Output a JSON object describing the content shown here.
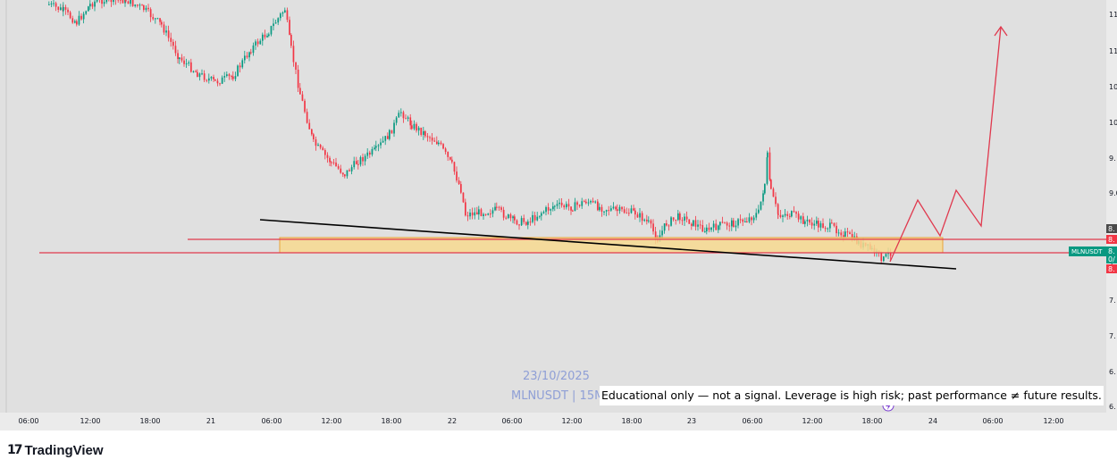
{
  "chart_data": {
    "type": "candlestick",
    "symbol_label": "MLNUSDT",
    "watermark_date": "23/10/2025",
    "watermark_symbol": "MLNUSDT | 15M",
    "x_ticks": [
      "06:00",
      "12:00",
      "18:00",
      "21",
      "06:00",
      "12:00",
      "18:00",
      "22",
      "06:00",
      "12:00",
      "18:00",
      "23",
      "06:00",
      "12:00",
      "18:00",
      "24",
      "06:00",
      "12:00"
    ],
    "y_ticks": [
      "11",
      "11",
      "10",
      "10",
      "9.",
      "9.0",
      "8.",
      "8.",
      "8.",
      "7.",
      "7.",
      "7.",
      "6.",
      "6."
    ],
    "price_tags": [
      {
        "text": "8.",
        "color": "#4a4a4a"
      },
      {
        "text": "8.",
        "color": "#f23645"
      },
      {
        "text": "8.",
        "color": "#089981"
      },
      {
        "text": "0/",
        "color": "#089981"
      },
      {
        "text": "8.",
        "color": "#f23645"
      }
    ],
    "colors": {
      "up": "#089981",
      "down": "#f23645",
      "zone_fill": "#f7d98f",
      "zone_stroke": "#e8a33a",
      "level": "#e0394e",
      "trendline": "#000000",
      "projection": "#e0394e",
      "background": "#e0e0e0"
    }
  },
  "disclaimer": "Educational only — not a signal. Leverage is high risk; past performance ≠ future results.",
  "brand": {
    "logo": "17",
    "name": "TradingView"
  }
}
